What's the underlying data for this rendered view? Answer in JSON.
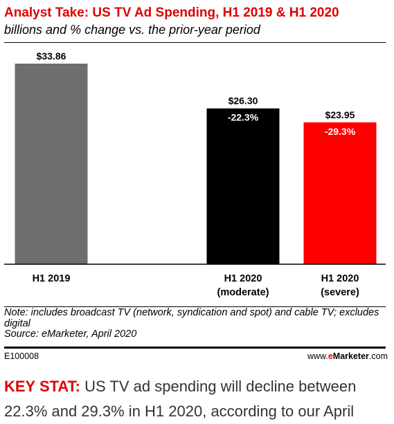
{
  "title": "Analyst Take: US TV Ad Spending, H1 2019 & H1 2020",
  "subtitle": "billions and % change vs. the prior-year period",
  "chart_data": {
    "type": "bar",
    "categories": [
      [
        "H1 2019"
      ],
      [
        "H1 2020",
        "(moderate)"
      ],
      [
        "H1 2020",
        "(severe)"
      ]
    ],
    "values": [
      33.86,
      26.3,
      23.95
    ],
    "value_labels": [
      "$33.86",
      "$26.30",
      "$23.95"
    ],
    "change_labels": [
      "",
      "-22.3%",
      "-29.3%"
    ],
    "colors": [
      "#6e6e6e",
      "#000000",
      "#ff0000"
    ],
    "ylim": [
      0,
      33.86
    ],
    "grid": false,
    "legend": "none",
    "xlabel": "",
    "ylabel": ""
  },
  "note": "Note: includes broadcast TV (network, syndication and spot) and cable TV; excludes digital",
  "source": "Source: eMarketer, April 2020",
  "chart_code": "E100008",
  "site": {
    "prefix": "www.",
    "brand_e": "e",
    "brand_rest": "Marketer",
    "suffix": ".com"
  },
  "key_stat": {
    "label": "KEY STAT:",
    "text": "US TV ad spending will decline between",
    "text_line2": "22.3% and 29.3% in H1 2020, according to our April"
  }
}
